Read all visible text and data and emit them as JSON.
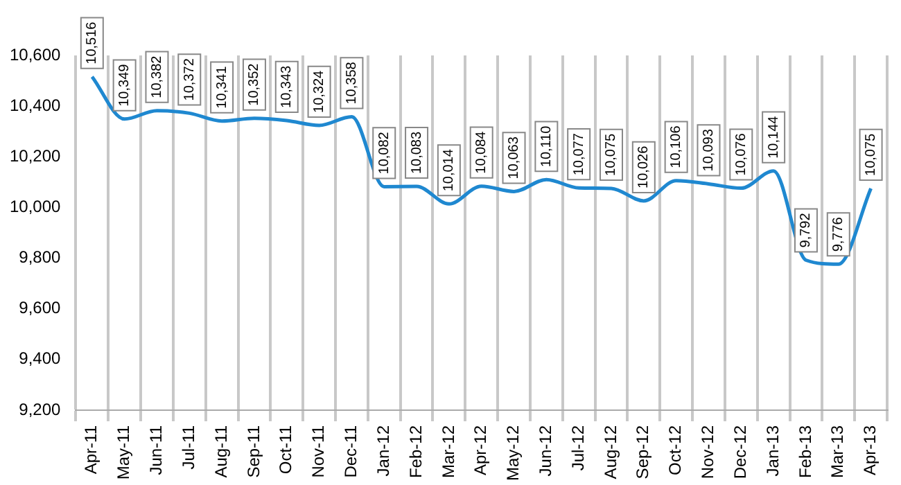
{
  "chart_data": {
    "type": "line",
    "categories": [
      "Apr-11",
      "May-11",
      "Jun-11",
      "Jul-11",
      "Aug-11",
      "Sep-11",
      "Oct-11",
      "Nov-11",
      "Dec-11",
      "Jan-12",
      "Feb-12",
      "Mar-12",
      "Apr-12",
      "May-12",
      "Jun-12",
      "Jul-12",
      "Aug-12",
      "Sep-12",
      "Oct-12",
      "Nov-12",
      "Dec-12",
      "Jan-13",
      "Feb-13",
      "Mar-13",
      "Apr-13"
    ],
    "series": [
      {
        "color": "#1f88d0",
        "values": [
          10516,
          10349,
          10382,
          10372,
          10341,
          10352,
          10343,
          10324,
          10358,
          10082,
          10083,
          10014,
          10084,
          10063,
          10110,
          10077,
          10075,
          10026,
          10106,
          10093,
          10076,
          10144,
          9792,
          9776,
          10075
        ],
        "value_labels": [
          "10,516",
          "10,349",
          "10,382",
          "10,372",
          "10,341",
          "10,352",
          "10,343",
          "10,324",
          "10,358",
          "10,082",
          "10,083",
          "10,014",
          "10,084",
          "10,063",
          "10,110",
          "10,077",
          "10,075",
          "10,026",
          "10,106",
          "10,093",
          "10,076",
          "10,144",
          "9,792",
          "9,776",
          "10,075"
        ]
      }
    ],
    "ylim": [
      9200,
      10600
    ],
    "yticks": [
      {
        "value": 9200,
        "label": "9,200"
      },
      {
        "value": 9400,
        "label": "9,400"
      },
      {
        "value": 9600,
        "label": "9,600"
      },
      {
        "value": 9800,
        "label": "9,800"
      },
      {
        "value": 10000,
        "label": "10,000"
      },
      {
        "value": 10200,
        "label": "10,200"
      },
      {
        "value": 10400,
        "label": "10,400"
      },
      {
        "value": 10600,
        "label": "10,600"
      }
    ],
    "grid": "x",
    "legend": false,
    "marker": "none",
    "line_style": "solid"
  }
}
